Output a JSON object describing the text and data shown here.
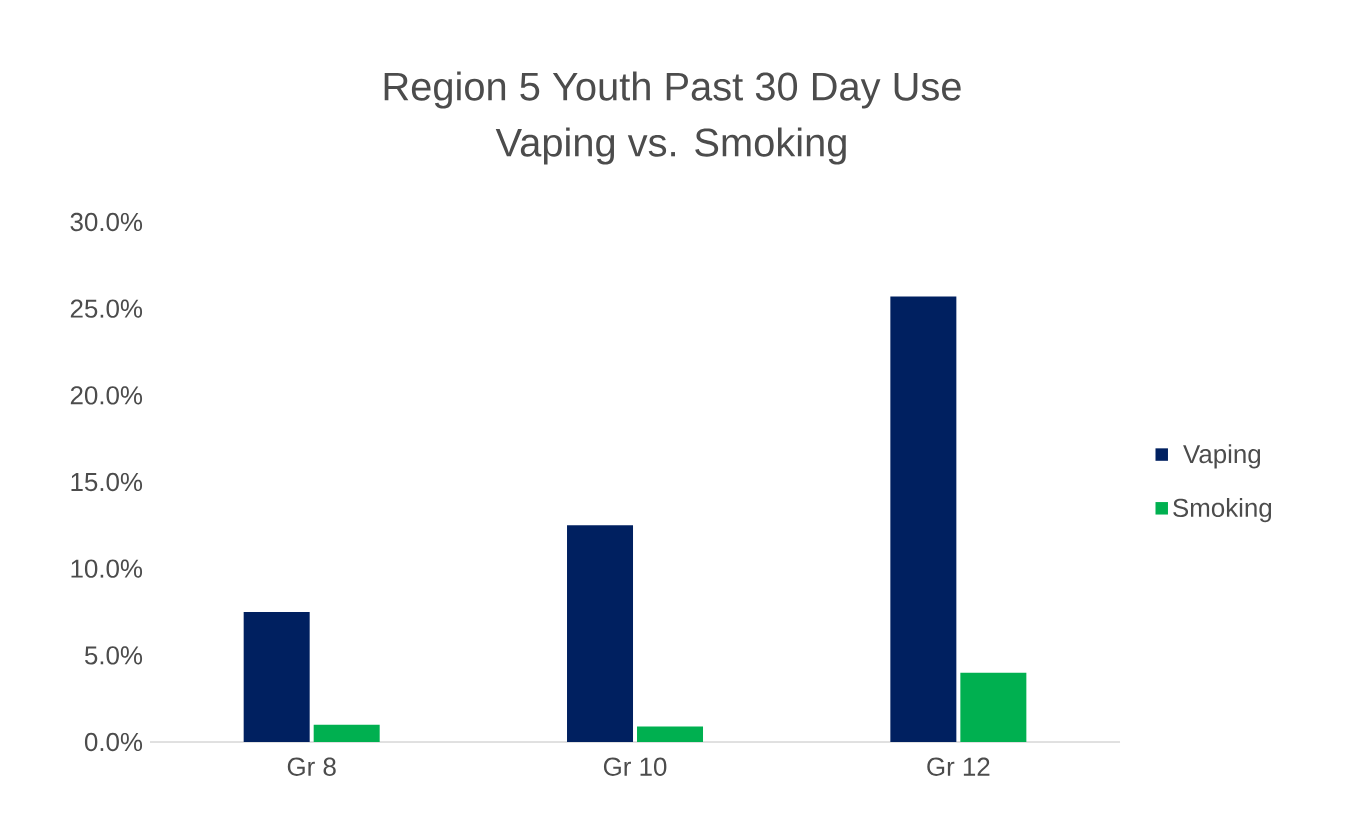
{
  "chart_data": {
    "type": "bar",
    "title": "Region 5 Youth Past 30 Day Use",
    "subtitle": "Vaping vs. Smoking",
    "categories": [
      "Gr 8",
      "Gr 10",
      "Gr 12"
    ],
    "series": [
      {
        "name": "Vaping",
        "color": "#002060",
        "values": [
          7.5,
          12.5,
          25.7
        ]
      },
      {
        "name": "Smoking",
        "color": "#00b050",
        "values": [
          1.0,
          0.9,
          4.0
        ]
      }
    ],
    "ylim": [
      0,
      30
    ],
    "yticks": [
      {
        "value": 0,
        "label": "0.0%"
      },
      {
        "value": 5,
        "label": "5.0%"
      },
      {
        "value": 10,
        "label": "10.0%"
      },
      {
        "value": 15,
        "label": "15.0%"
      },
      {
        "value": 20,
        "label": "20.0%"
      },
      {
        "value": 25,
        "label": "25.0%"
      },
      {
        "value": 30,
        "label": "30.0%"
      }
    ],
    "legend": "right"
  }
}
